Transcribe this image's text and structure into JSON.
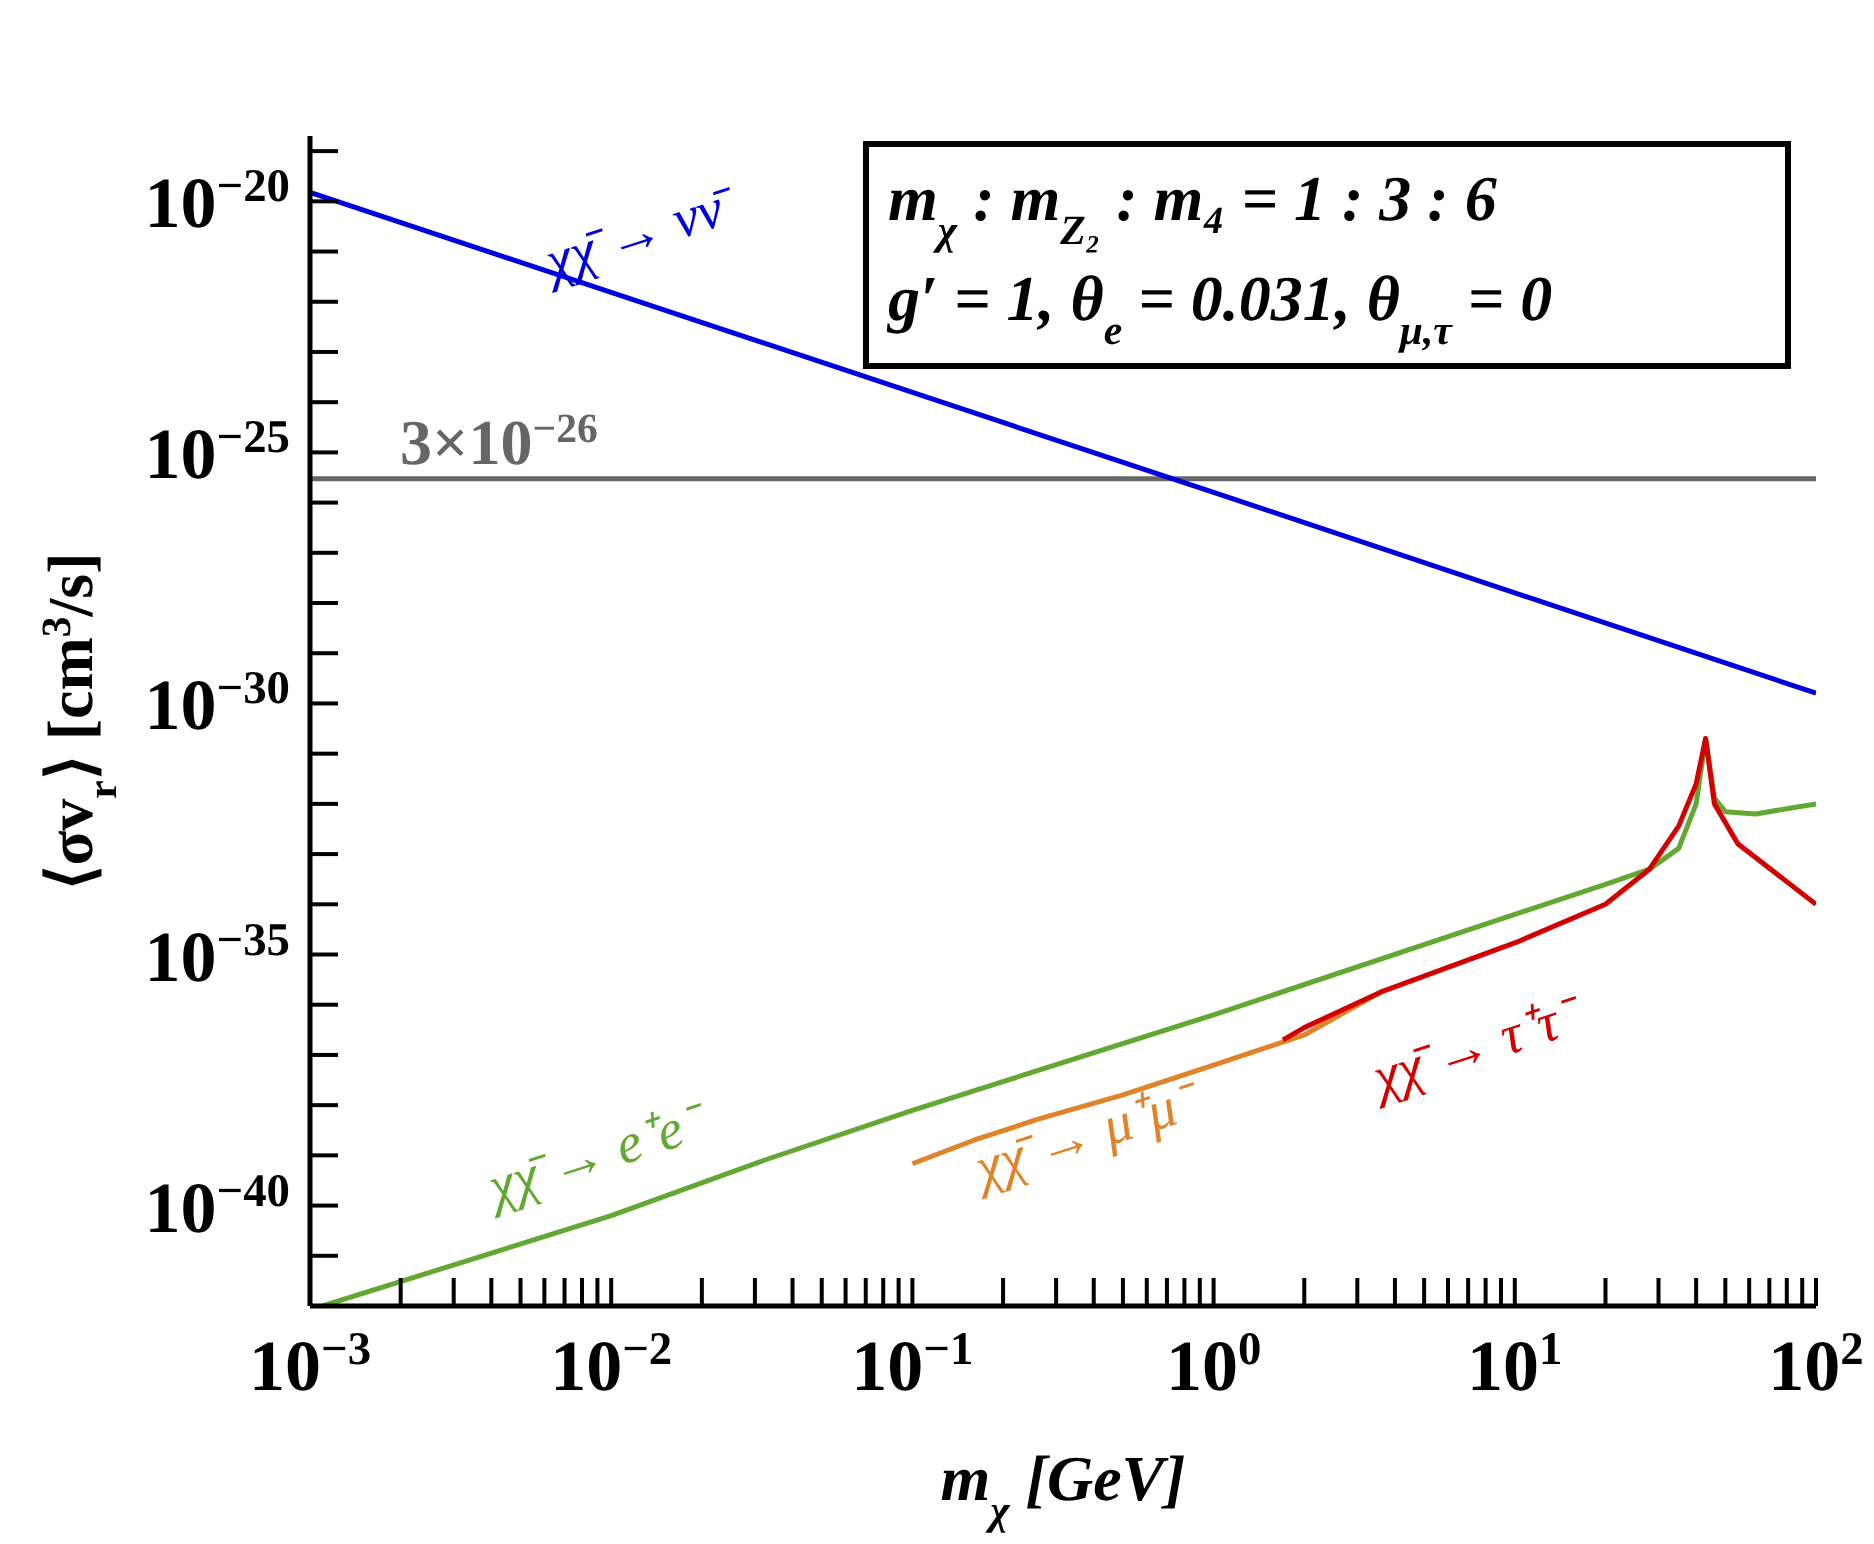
{
  "chart_data": {
    "type": "line",
    "xlabel": "m$_{χ}$ [GeV]",
    "ylabel": "⟨σv$_{r}$⟩ [cm$^{3}$/s]",
    "log": "xy",
    "grid": false,
    "legend": false,
    "line_style": "solid",
    "xlim": [
      0.001,
      100
    ],
    "ylim": [
      1e-42,
      2e-19
    ],
    "xticks": [
      {
        "value": 0.001,
        "label": "10$^{−3}$"
      },
      {
        "value": 0.002,
        "label": null
      },
      {
        "value": 0.003,
        "label": null
      },
      {
        "value": 0.004,
        "label": null
      },
      {
        "value": 0.005,
        "label": null
      },
      {
        "value": 0.006,
        "label": null
      },
      {
        "value": 0.007,
        "label": null
      },
      {
        "value": 0.008,
        "label": null
      },
      {
        "value": 0.009,
        "label": null
      },
      {
        "value": 0.01,
        "label": "10$^{−2}$"
      },
      {
        "value": 0.02,
        "label": null
      },
      {
        "value": 0.03,
        "label": null
      },
      {
        "value": 0.04,
        "label": null
      },
      {
        "value": 0.05,
        "label": null
      },
      {
        "value": 0.06,
        "label": null
      },
      {
        "value": 0.07,
        "label": null
      },
      {
        "value": 0.08,
        "label": null
      },
      {
        "value": 0.09,
        "label": null
      },
      {
        "value": 0.1,
        "label": "10$^{−1}$"
      },
      {
        "value": 0.2,
        "label": null
      },
      {
        "value": 0.3,
        "label": null
      },
      {
        "value": 0.4,
        "label": null
      },
      {
        "value": 0.5,
        "label": null
      },
      {
        "value": 0.6,
        "label": null
      },
      {
        "value": 0.7,
        "label": null
      },
      {
        "value": 0.8,
        "label": null
      },
      {
        "value": 0.9,
        "label": null
      },
      {
        "value": 1,
        "label": "10$^{0}$"
      },
      {
        "value": 2,
        "label": null
      },
      {
        "value": 3,
        "label": null
      },
      {
        "value": 4,
        "label": null
      },
      {
        "value": 5,
        "label": null
      },
      {
        "value": 6,
        "label": null
      },
      {
        "value": 7,
        "label": null
      },
      {
        "value": 8,
        "label": null
      },
      {
        "value": 9,
        "label": null
      },
      {
        "value": 10,
        "label": "10$^{1}$"
      },
      {
        "value": 20,
        "label": null
      },
      {
        "value": 30,
        "label": null
      },
      {
        "value": 40,
        "label": null
      },
      {
        "value": 50,
        "label": null
      },
      {
        "value": 60,
        "label": null
      },
      {
        "value": 70,
        "label": null
      },
      {
        "value": 80,
        "label": null
      },
      {
        "value": 90,
        "label": null
      },
      {
        "value": 100,
        "label": "10$^{2}$"
      }
    ],
    "yticks": [
      {
        "value": 1e-42,
        "label": null
      },
      {
        "value": 1e-41,
        "label": null
      },
      {
        "value": 1e-40,
        "label": "10$^{−40}$"
      },
      {
        "value": 1e-39,
        "label": null
      },
      {
        "value": 1e-38,
        "label": null
      },
      {
        "value": 1e-37,
        "label": null
      },
      {
        "value": 1e-36,
        "label": null
      },
      {
        "value": 1e-35,
        "label": "10$^{−35}$"
      },
      {
        "value": 1e-34,
        "label": null
      },
      {
        "value": 1e-33,
        "label": null
      },
      {
        "value": 1e-32,
        "label": null
      },
      {
        "value": 1e-31,
        "label": null
      },
      {
        "value": 1e-30,
        "label": "10$^{−30}$"
      },
      {
        "value": 1e-29,
        "label": null
      },
      {
        "value": 1e-28,
        "label": null
      },
      {
        "value": 1e-27,
        "label": null
      },
      {
        "value": 1e-26,
        "label": null
      },
      {
        "value": 1e-25,
        "label": "10$^{−25}$"
      },
      {
        "value": 1e-24,
        "label": null
      },
      {
        "value": 1e-23,
        "label": null
      },
      {
        "value": 1e-22,
        "label": null
      },
      {
        "value": 1e-21,
        "label": null
      },
      {
        "value": 1e-20,
        "label": "10$^{−20}$"
      },
      {
        "value": 1e-19,
        "label": null
      }
    ],
    "ref_lines": [
      {
        "axis": "y",
        "value": 3e-26,
        "label": "3×10$^{−26}$",
        "color": "#666666"
      }
    ],
    "annotations": [
      "m$_{χ}$ : m$_{Z₂}$ : m₄ = 1 : 3 : 6",
      "g′ = 1, θ$_{e}$ = 0.031, θ$_{μ,τ}$ = 0"
    ],
    "series": [
      {
        "name": "χχ̄ → νν̄",
        "color": "#0000dd",
        "x": [
          0.001,
          1,
          100
        ],
        "values": [
          1.5e-20,
          1.6e-26,
          1.6e-30
        ]
      },
      {
        "name": "χχ̄ → e⁺e⁻",
        "color": "#62a832",
        "x": [
          0.0011,
          0.01,
          0.032,
          0.1,
          1,
          10,
          20,
          28,
          35,
          40,
          43,
          46,
          50,
          63,
          79,
          100
        ],
        "values": [
          1e-42,
          6.3e-41,
          7.9e-40,
          7.9e-39,
          6.3e-37,
          6.3e-35,
          2.5e-34,
          5e-34,
          1.3e-33,
          1e-32,
          2e-31,
          1.3e-32,
          7e-33,
          6.3e-33,
          7.9e-33,
          1e-32
        ]
      },
      {
        "name": "χχ̄ → μ⁺μ⁻",
        "color": "#e0842a",
        "x": [
          0.1,
          0.16,
          0.26,
          0.5,
          1,
          2,
          3.6
        ],
        "values": [
          6.8e-40,
          2e-39,
          5.2e-39,
          1.6e-38,
          6.3e-38,
          2.5e-37,
          1.8e-36
        ]
      },
      {
        "name": "χχ̄ → τ⁺τ⁻",
        "color": "#d40000",
        "x": [
          1.7,
          2,
          3.6,
          10,
          20,
          28,
          35,
          40,
          43,
          46,
          55,
          100
        ],
        "values": [
          2e-37,
          3.5e-37,
          1.8e-36,
          1.7e-35,
          1e-34,
          5e-34,
          3.6e-33,
          2.5e-32,
          2e-31,
          1e-32,
          1.6e-33,
          1e-34
        ]
      }
    ]
  }
}
